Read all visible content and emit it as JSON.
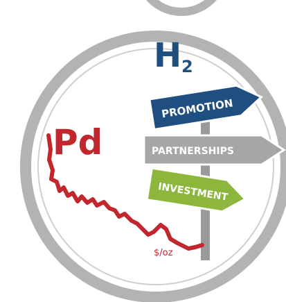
{
  "formula": {
    "symbol": "H",
    "subscript": "2"
  },
  "element": "Pd",
  "unit": "$/oz",
  "signs": [
    "PROMOTION",
    "PARTNERSHIPS",
    "INVESTMENT"
  ]
}
